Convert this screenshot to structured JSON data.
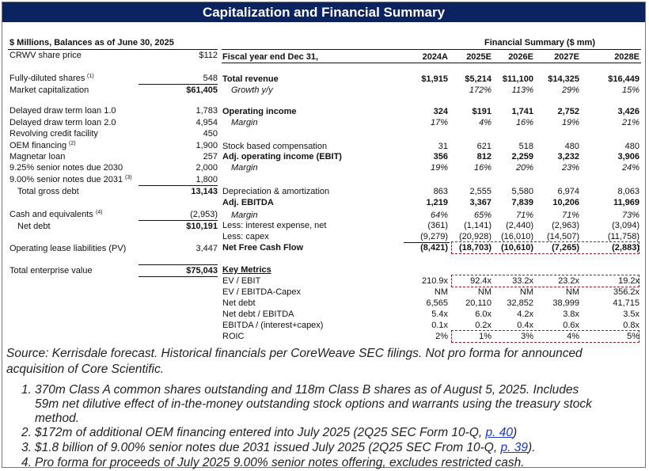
{
  "title": "Capitalization and Financial Summary",
  "left": {
    "header": "$ Millions, Balances as of June 30, 2025",
    "rows": [
      {
        "label": "CRWV share price",
        "value": "$112"
      },
      {
        "label": "Fully-diluted shares",
        "sup": "(1)",
        "value": "548"
      },
      {
        "label": "Market capitalization",
        "value": "$61,405",
        "bold_value": true
      },
      {
        "label": "Delayed draw term loan 1.0",
        "value": "1,783"
      },
      {
        "label": "Delayed draw term loan 2.0",
        "value": "4,954"
      },
      {
        "label": "Revolving credit facility",
        "value": "450"
      },
      {
        "label": "OEM financing",
        "sup": "(2)",
        "value": "1,900"
      },
      {
        "label": "Magnetar loan",
        "value": "257"
      },
      {
        "label": "9.25% senior notes due 2030",
        "value": "2,000"
      },
      {
        "label": "9.00% senior notes due 2031",
        "sup": "(3)",
        "value": "1,800"
      },
      {
        "label": "Total gross debt",
        "value": "13,143",
        "bold_value": true,
        "indent": true
      },
      {
        "label": "Cash and equivalents",
        "sup": "(4)",
        "value": "(2,953)"
      },
      {
        "label": "Net debt",
        "value": "$10,191",
        "bold_value": true,
        "indent": true
      },
      {
        "label": "Operating lease liabilities (PV)",
        "value": "3,447"
      },
      {
        "label": "Total enterprise value",
        "value": "$75,043",
        "bold_value": true
      }
    ]
  },
  "right": {
    "header": "Financial Summary ($ mm)",
    "fiscal_label": "Fiscal year end Dec 31,",
    "years": [
      "2024A",
      "2025E",
      "2026E",
      "2027E",
      "2028E"
    ],
    "rows": [
      {
        "label": "Total revenue",
        "style": "b",
        "values": [
          "$1,915",
          "$5,214",
          "$11,100",
          "$14,325",
          "$16,449"
        ]
      },
      {
        "label": "Growth y/y",
        "style": "i",
        "values": [
          "",
          "172%",
          "113%",
          "29%",
          "15%"
        ]
      },
      {
        "label": "Operating income",
        "style": "b",
        "values": [
          "324",
          "$191",
          "1,741",
          "2,752",
          "3,426"
        ]
      },
      {
        "label": "Margin",
        "style": "i",
        "values": [
          "17%",
          "4%",
          "16%",
          "19%",
          "21%"
        ]
      },
      {
        "label": "Stock based compensation",
        "style": "",
        "values": [
          "31",
          "621",
          "518",
          "480",
          "480"
        ]
      },
      {
        "label": "Adj. operating income (EBIT)",
        "style": "b",
        "values": [
          "356",
          "812",
          "2,259",
          "3,232",
          "3,906"
        ]
      },
      {
        "label": "Margin",
        "style": "i",
        "values": [
          "19%",
          "16%",
          "20%",
          "23%",
          "24%"
        ]
      },
      {
        "label": "Depreciation & amortization",
        "style": "",
        "values": [
          "863",
          "2,555",
          "5,580",
          "6,974",
          "8,063"
        ]
      },
      {
        "label": "Adj. EBITDA",
        "style": "b",
        "values": [
          "1,219",
          "3,367",
          "7,839",
          "10,206",
          "11,969"
        ]
      },
      {
        "label": "Margin",
        "style": "i",
        "values": [
          "64%",
          "65%",
          "71%",
          "71%",
          "73%"
        ]
      },
      {
        "label": "Less: interest expense, net",
        "style": "",
        "values": [
          "(361)",
          "(1,141)",
          "(2,440)",
          "(2,963)",
          "(3,094)"
        ]
      },
      {
        "label": "Less: capex",
        "style": "",
        "values": [
          "(9,279)",
          "(20,928)",
          "(16,010)",
          "(14,507)",
          "(11,758)"
        ]
      },
      {
        "label": "Net Free Cash Flow",
        "style": "b",
        "values": [
          "(8,421)",
          "(18,703)",
          "(10,610)",
          "(7,265)",
          "(2,883)"
        ]
      },
      {
        "label": "Key Metrics",
        "style": "bu",
        "values": [
          "",
          "",
          "",
          "",
          ""
        ]
      },
      {
        "label": "EV / EBIT",
        "style": "",
        "values": [
          "210.9x",
          "92.4x",
          "33.2x",
          "23.2x",
          "19.2x"
        ]
      },
      {
        "label": "EV / EBITDA-Capex",
        "style": "",
        "values": [
          "NM",
          "NM",
          "NM",
          "NM",
          "356.2x"
        ]
      },
      {
        "label": "Net debt",
        "style": "",
        "values": [
          "6,565",
          "20,110",
          "32,852",
          "38,999",
          "41,715"
        ]
      },
      {
        "label": "Net debt / EBITDA",
        "style": "",
        "values": [
          "5.4x",
          "6.0x",
          "4.2x",
          "3.8x",
          "3.5x"
        ]
      },
      {
        "label": "EBITDA / (interest+capex)",
        "style": "",
        "values": [
          "0.1x",
          "0.2x",
          "0.4x",
          "0.6x",
          "0.8x"
        ]
      },
      {
        "label": "ROIC",
        "style": "",
        "values": [
          "2%",
          "1%",
          "3%",
          "4%",
          "5%"
        ]
      }
    ]
  },
  "footnotes": {
    "source_1": "Source: Kerrisdale forecast. Historical financials per CoreWeave SEC filings. Not pro forma for announced",
    "source_2": "acquisition of Core Scientific.",
    "n1_num": "1.",
    "n1_a": "370m Class A common shares outstanding and 118m Class B shares as of August 5, 2025. Includes",
    "n1_b": "59m net dilutive effect of in-the-money outstanding stock options and warrants using the treasury stock",
    "n1_c": "method.",
    "n2_num": "2.",
    "n2_text": "$172m of additional OEM financing entered into July 2025 (2Q25 SEC Form 10-Q, ",
    "n2_link": "p. 40",
    "n2_end": ")",
    "n3_num": "3.",
    "n3_text": "$1.8 billion of 9.00% senior notes due 2031 issued July 2025 (2Q25 SEC From 10-Q, ",
    "n3_link": "p. 39",
    "n3_end": ").",
    "n4_num": "4.",
    "n4_text": "Pro forma for proceeds of July 2025 9.00% senior notes offering, excludes restricted cash."
  },
  "colors": {
    "title_bg": "#0b2360",
    "highlight_dash": "#9b1c2a",
    "link": "#1a37c9"
  }
}
